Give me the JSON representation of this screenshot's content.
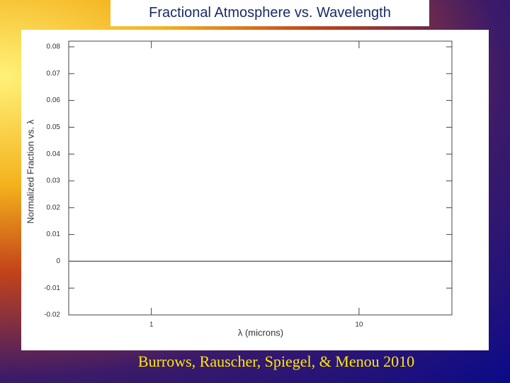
{
  "slide": {
    "title": "Fractional Atmosphere vs. Wavelength",
    "footer": "Burrows, Rauscher, Spiegel, & Menou  2010"
  },
  "chart_data": {
    "type": "line",
    "xlabel": "λ (microns)",
    "ylabel": "Normalized Fraction vs. λ",
    "x": [
      0.4,
      28
    ],
    "values": [
      0,
      0
    ],
    "color": "#666666",
    "xscale": "log",
    "xlim": [
      0.4,
      28
    ],
    "xticks": [
      1,
      10
    ],
    "ylim": [
      -0.02,
      0.08
    ],
    "yticks": [
      0.08,
      0.07,
      0.06,
      0.05,
      0.04,
      0.03,
      0.02,
      0.01,
      0,
      -0.01,
      -0.02
    ]
  }
}
